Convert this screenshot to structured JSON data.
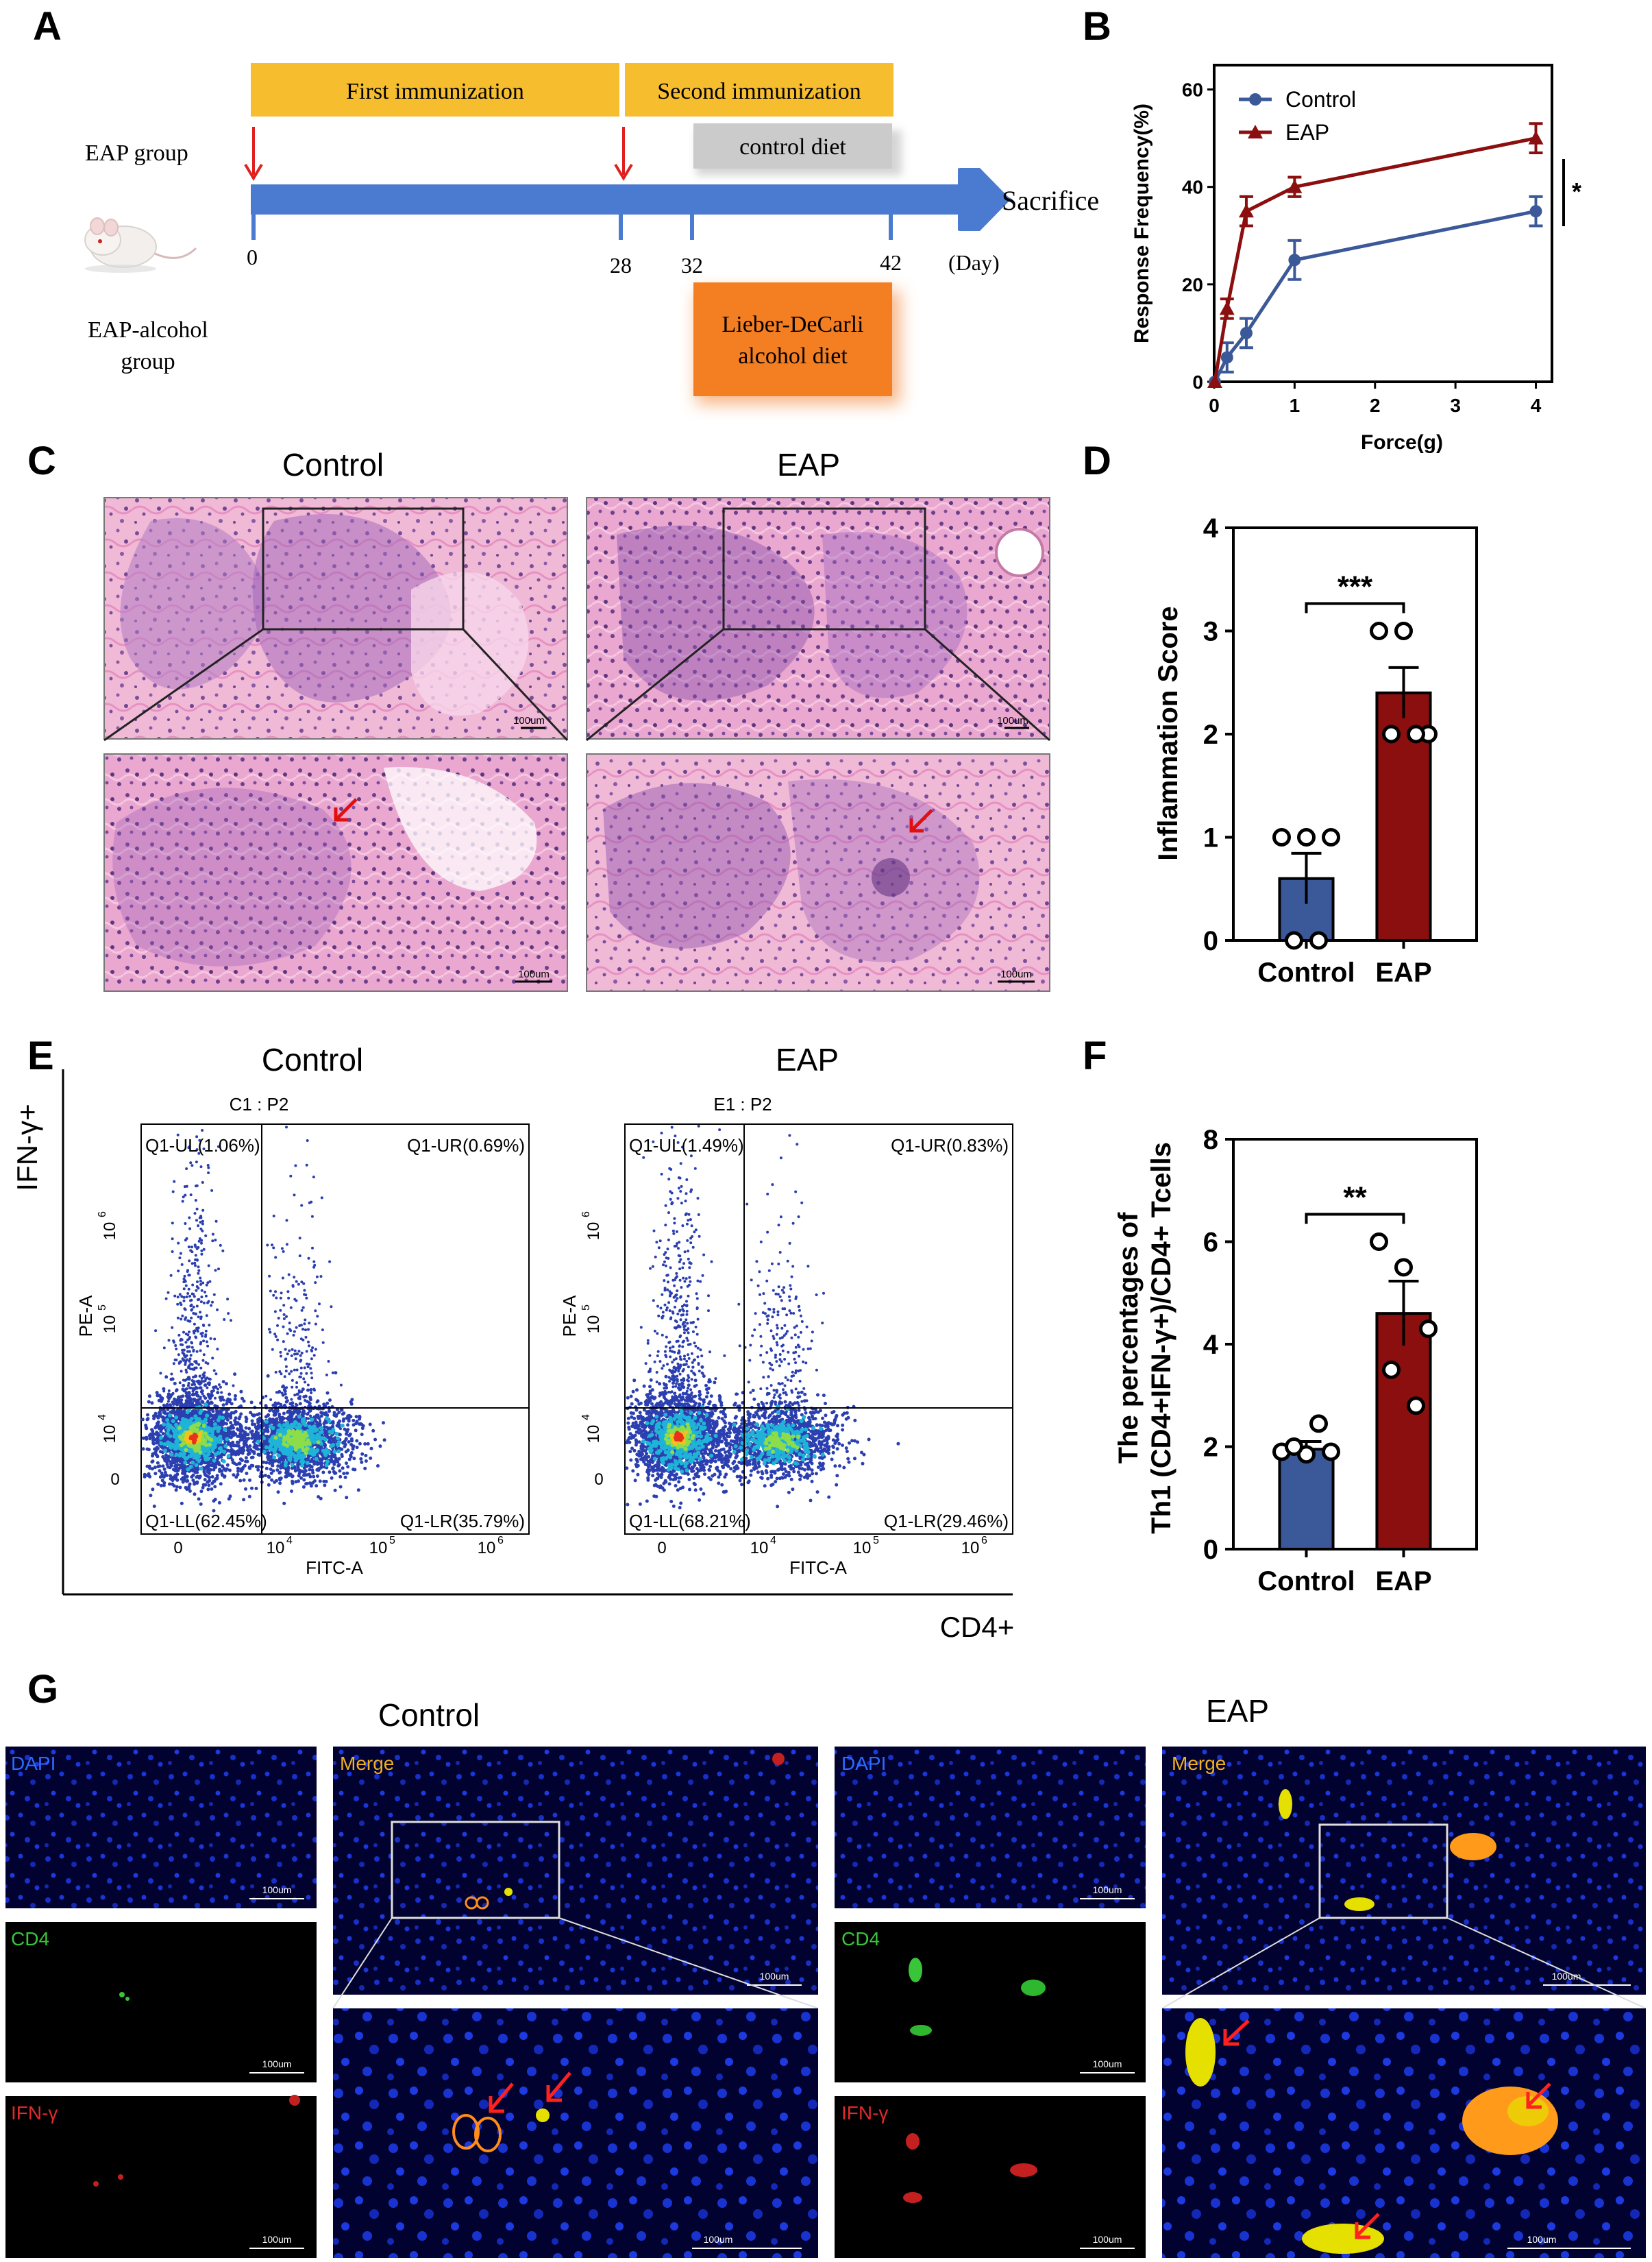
{
  "panel_letters": {
    "a": "A",
    "b": "B",
    "c": "C",
    "d": "D",
    "e": "E",
    "f": "F",
    "g": "G"
  },
  "timeline": {
    "first_immunization": "First immunization",
    "second_immunization": "Second immunization",
    "control_diet": "control diet",
    "alcohol_diet_line1": "Lieber-DeCarli",
    "alcohol_diet_line2": "alcohol diet",
    "eap_group": "EAP group",
    "alcohol_group_line1": "EAP-alcohol",
    "alcohol_group_line2": "group",
    "sacrifice": "Sacrifice",
    "day_unit": "(Day)",
    "days": [
      "0",
      "28",
      "32",
      "42"
    ]
  },
  "histology": {
    "control_title": "Control",
    "eap_title": "EAP",
    "scale_bar": "100um"
  },
  "flow": {
    "control_title": "Control",
    "eap_title": "EAP",
    "control_sample": "C1 : P2",
    "eap_sample": "E1 : P2",
    "y_title": "IFN-γ+",
    "x_title": "CD4+",
    "y_axis": "PE-A",
    "x_axis": "FITC-A",
    "control_quadrants": {
      "ul": "Q1-UL(1.06%)",
      "ur": "Q1-UR(0.69%)",
      "ll": "Q1-LL(62.45%)",
      "lr": "Q1-LR(35.79%)"
    },
    "eap_quadrants": {
      "ul": "Q1-UL(1.49%)",
      "ur": "Q1-UR(0.83%)",
      "ll": "Q1-LL(68.21%)",
      "lr": "Q1-LR(29.46%)"
    },
    "x_ticks": [
      "0",
      "10",
      "10",
      "10"
    ],
    "y_ticks": [
      "0",
      "10",
      "10",
      "10"
    ],
    "tick_exponents": [
      "4",
      "5",
      "6"
    ]
  },
  "fluorescence": {
    "control_title": "Control",
    "eap_title": "EAP",
    "dapi": "DAPI",
    "cd4": "CD4",
    "ifn": "IFN-γ",
    "merge": "Merge",
    "scale_bar": "100um"
  },
  "colors": {
    "control": "#3b5998",
    "eap": "#8b0f0f"
  },
  "chart_data": [
    {
      "panel": "B",
      "type": "line",
      "xlabel": "Force(g)",
      "ylabel": "Response Frequency(%)",
      "xlim": [
        0,
        4.2
      ],
      "ylim": [
        0,
        65
      ],
      "x_ticks": [
        0,
        1,
        2,
        3,
        4
      ],
      "y_ticks": [
        0,
        20,
        40,
        60
      ],
      "legend": "top-left",
      "significance": "*",
      "series": [
        {
          "name": "Control",
          "x": [
            0.008,
            0.16,
            0.4,
            1,
            4
          ],
          "y": [
            0,
            5,
            10,
            25,
            35
          ],
          "err": [
            0,
            3,
            3,
            4,
            3
          ]
        },
        {
          "name": "EAP",
          "x": [
            0.008,
            0.16,
            0.4,
            1,
            4
          ],
          "y": [
            0,
            15,
            35,
            40,
            50
          ],
          "err": [
            0,
            2,
            3,
            2,
            3
          ]
        }
      ]
    },
    {
      "panel": "D",
      "type": "bar",
      "categories": [
        "Control",
        "EAP"
      ],
      "values": [
        0.6,
        2.4
      ],
      "errors": [
        0.245,
        0.245
      ],
      "points": [
        [
          1,
          1,
          1,
          0,
          0
        ],
        [
          3,
          3,
          2,
          2,
          2
        ]
      ],
      "ylabel": "Inflammation Score",
      "ylim": [
        0,
        4
      ],
      "y_ticks": [
        0,
        1,
        2,
        3,
        4
      ],
      "significance": "***"
    },
    {
      "panel": "F",
      "type": "bar",
      "categories": [
        "Control",
        "EAP"
      ],
      "values": [
        1.95,
        4.6
      ],
      "errors": [
        0.15,
        0.63
      ],
      "points": [
        [
          1.9,
          1.85,
          1.9,
          2.0,
          2.45
        ],
        [
          6.0,
          5.5,
          4.3,
          3.5,
          2.8
        ]
      ],
      "ylabel": "The percentages of\nTh1 (CD4+IFN-γ+)/CD4+ Tcells",
      "ylim": [
        0,
        8
      ],
      "y_ticks": [
        0,
        2,
        4,
        6,
        8
      ],
      "significance": "**"
    }
  ]
}
